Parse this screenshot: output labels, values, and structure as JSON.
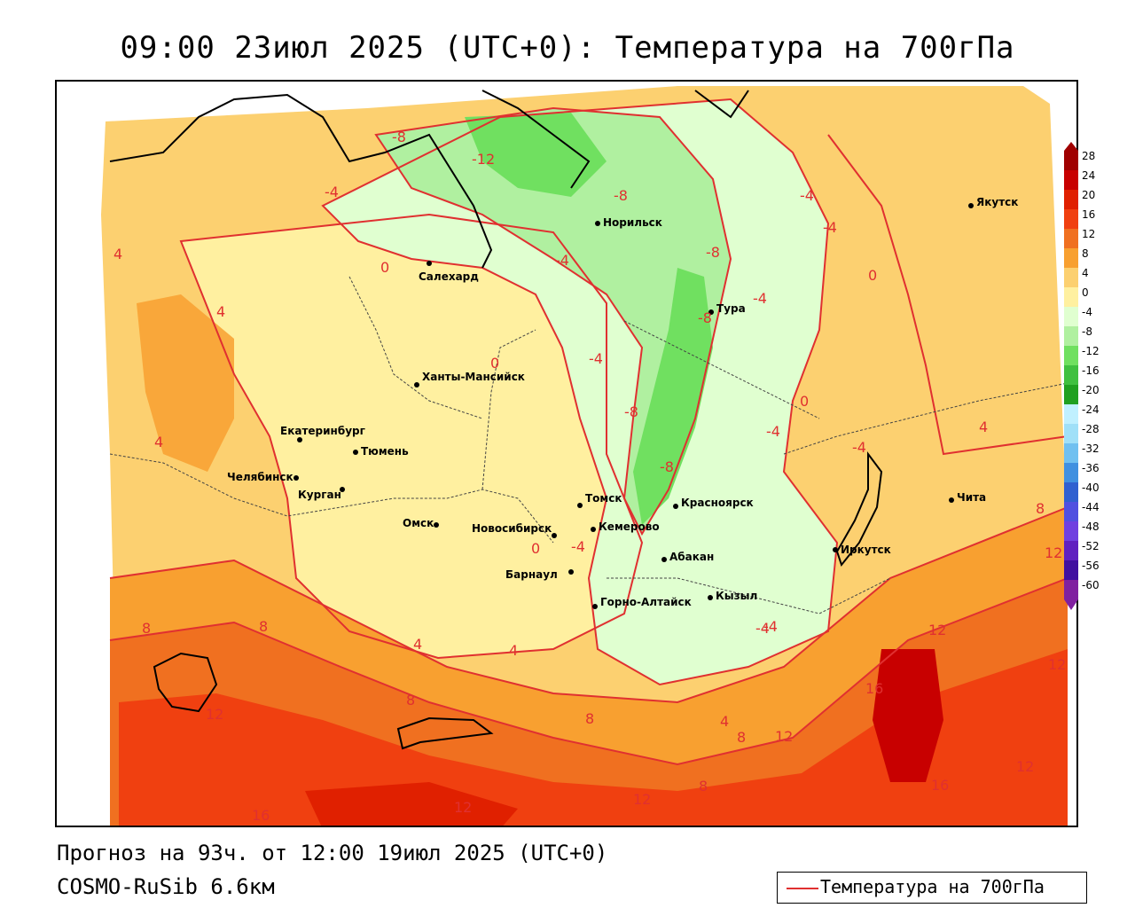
{
  "header": {
    "title": "09:00 23июл 2025 (UTC+0): Температура на 700гПа"
  },
  "footer": {
    "forecast": "Прогноз на 93ч. от 12:00 19июл 2025 (UTC+0)",
    "model": "COSMO-RuSib 6.6км"
  },
  "legend": {
    "label": "Температура на 700гПа",
    "line_color": "#e03030"
  },
  "color_scale": {
    "ticks": [
      "28",
      "24",
      "20",
      "16",
      "12",
      "8",
      "4",
      "0",
      "-4",
      "-8",
      "-12",
      "-16",
      "-20",
      "-24",
      "-28",
      "-32",
      "-36",
      "-40",
      "-44",
      "-48",
      "-52",
      "-56",
      "-60"
    ],
    "colors": [
      "#a00000",
      "#c80000",
      "#e02000",
      "#f04010",
      "#f07020",
      "#f8a030",
      "#fcd070",
      "#fff0a0",
      "#e0ffd0",
      "#b0f0a0",
      "#70e060",
      "#40c040",
      "#20a020",
      "#c0f0ff",
      "#a0e0f8",
      "#70c0f0",
      "#4090e0",
      "#3060d0",
      "#5050e0",
      "#7040e0",
      "#6020c0",
      "#4010a0",
      "#8020a0"
    ]
  },
  "cities": [
    {
      "name": "Якутск"
    },
    {
      "name": "Норильск"
    },
    {
      "name": "Салехард"
    },
    {
      "name": "Тура"
    },
    {
      "name": "Ханты-Мансийск"
    },
    {
      "name": "Екатеринбург"
    },
    {
      "name": "Тюмень"
    },
    {
      "name": "Челябинск"
    },
    {
      "name": "Курган"
    },
    {
      "name": "Омск"
    },
    {
      "name": "Новосибирск"
    },
    {
      "name": "Томск"
    },
    {
      "name": "Кемерово"
    },
    {
      "name": "Красноярск"
    },
    {
      "name": "Барнаул"
    },
    {
      "name": "Абакан"
    },
    {
      "name": "Горно-Алтайск"
    },
    {
      "name": "Кызыл"
    },
    {
      "name": "Иркутск"
    },
    {
      "name": "Чита"
    }
  ],
  "isotherm_labels": [
    "-8",
    "-12",
    "-4",
    "-8",
    "-4",
    "4",
    "0",
    "-4",
    "-4",
    "0",
    "-8",
    "-8",
    "-4",
    "-8",
    "-4",
    "0",
    "4",
    "4",
    "0",
    "-4",
    "-8",
    "-4",
    "4",
    "-4",
    "8",
    "0",
    "-4",
    "12",
    "8",
    "8",
    "4",
    "4",
    "12",
    "8",
    "12",
    "8",
    "4",
    "8",
    "12",
    "16",
    "12",
    "12",
    "16",
    "16",
    "12",
    "12",
    "8",
    "-4"
  ]
}
